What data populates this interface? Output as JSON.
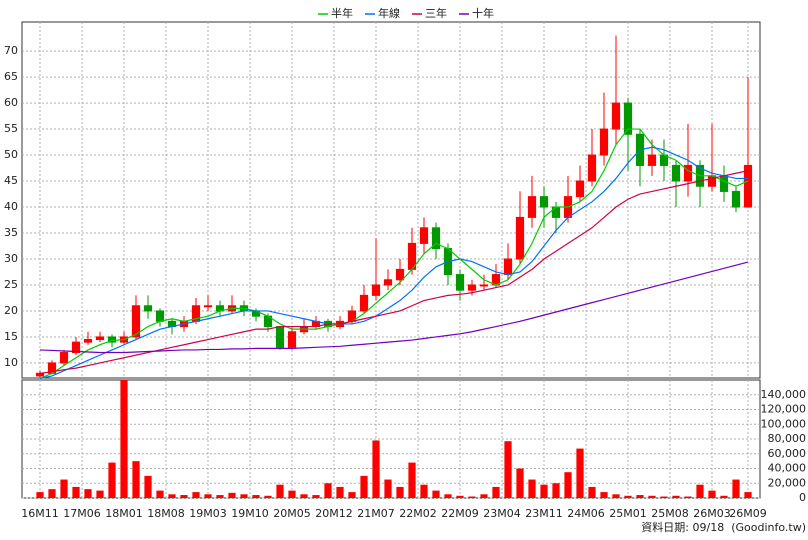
{
  "chart_data": [
    {
      "type": "candlestick",
      "x": [
        0,
        2,
        4,
        6,
        8,
        10,
        12,
        14,
        16,
        18,
        20,
        22,
        24,
        26,
        28,
        30,
        32,
        34,
        36,
        38,
        40,
        42,
        44,
        46,
        48,
        50,
        52,
        54,
        56,
        58,
        60,
        62,
        64,
        66,
        68,
        70,
        72,
        74,
        76,
        78,
        80,
        82,
        84,
        86,
        88,
        90,
        92,
        94,
        96,
        98,
        100,
        102,
        104,
        106,
        108,
        110,
        112,
        114,
        116,
        118
      ],
      "open": [
        7.5,
        8,
        10,
        12,
        14,
        14.5,
        15,
        14,
        15,
        21,
        20,
        18,
        17,
        18,
        21,
        21,
        20,
        21,
        20,
        19,
        17,
        13,
        16,
        17,
        18,
        17,
        18,
        20,
        23,
        25,
        26,
        28,
        33,
        36,
        32,
        27,
        24,
        25,
        25,
        27,
        30,
        38,
        42,
        40,
        38,
        42,
        45,
        50,
        55,
        60,
        54,
        48,
        50,
        48,
        45,
        48,
        44,
        46,
        43,
        40
      ],
      "high": [
        8.5,
        10.5,
        12.5,
        15,
        16,
        16,
        15.5,
        16,
        23,
        23,
        20.5,
        18.5,
        19,
        22.5,
        23,
        22,
        23,
        22,
        20.5,
        19.5,
        17,
        17,
        18.5,
        19,
        18.5,
        19,
        21,
        25,
        34,
        28,
        30,
        36,
        38,
        37,
        33,
        28,
        26,
        27,
        29,
        33,
        43,
        46,
        44,
        41,
        46,
        48,
        55,
        62,
        73,
        61,
        55,
        53,
        53,
        49,
        56,
        49,
        56,
        48,
        44,
        65
      ],
      "low": [
        7,
        7.8,
        9.5,
        11.5,
        13.5,
        14,
        13,
        13.5,
        14.5,
        18.5,
        17,
        15.5,
        16,
        17.5,
        20,
        19,
        19.5,
        19,
        18,
        16,
        12.5,
        12.5,
        15.5,
        16.5,
        16,
        16.5,
        17.5,
        19.5,
        22,
        24,
        25,
        27,
        31,
        30,
        25,
        22,
        23,
        24,
        24.5,
        26,
        29,
        36,
        36,
        35,
        37,
        41,
        44,
        48,
        52,
        47,
        44,
        46,
        45,
        40,
        42,
        40,
        43,
        41,
        39,
        40
      ],
      "close": [
        8,
        10,
        12,
        14,
        14.5,
        15,
        14,
        15,
        21,
        20,
        18,
        17,
        18,
        21,
        21,
        20,
        21,
        20,
        19,
        17,
        13,
        16,
        17,
        18,
        17,
        18,
        20,
        23,
        25,
        26,
        28,
        33,
        36,
        32,
        27,
        24,
        25,
        25,
        27,
        30,
        38,
        42,
        40,
        38,
        42,
        45,
        50,
        55,
        60,
        54,
        48,
        50,
        48,
        45,
        48,
        44,
        46,
        43,
        40,
        48
      ],
      "up_color": "#ff0000",
      "down_color": "#009900",
      "series": [
        {
          "name": "半年",
          "color": "#00cc00",
          "values": [
            7,
            8,
            9.5,
            11,
            12.5,
            13.5,
            14.3,
            14.5,
            15.5,
            17,
            18,
            18.5,
            18,
            18.5,
            19,
            20,
            20.5,
            20.5,
            20,
            19,
            17.5,
            16.5,
            16.5,
            16.5,
            17,
            17.5,
            18,
            19.5,
            21.5,
            23.5,
            25.5,
            28,
            31,
            33,
            32,
            30,
            28,
            26,
            25,
            26,
            29,
            33,
            38,
            40,
            40,
            41,
            43,
            47,
            52,
            55,
            55,
            52,
            50,
            49,
            47,
            46,
            46,
            45,
            44,
            45
          ]
        },
        {
          "name": "年線",
          "color": "#0070ff",
          "values": [
            7,
            7.5,
            8.5,
            9.5,
            10.5,
            11.5,
            12.5,
            13.5,
            14.5,
            15.5,
            16.5,
            17,
            17.5,
            18,
            18.5,
            19,
            19.5,
            20,
            20,
            20,
            19.5,
            19,
            18.5,
            18,
            17.5,
            17.5,
            17.5,
            18,
            19,
            20.5,
            22,
            24,
            26.5,
            28.5,
            29.5,
            30,
            29.5,
            28.5,
            27.5,
            27,
            27.5,
            29.5,
            32.5,
            35.5,
            38,
            39.5,
            41,
            43,
            45.5,
            48.5,
            51,
            51.5,
            51,
            50,
            49,
            47.5,
            46.5,
            46,
            45.5,
            45.5
          ]
        },
        {
          "name": "三年",
          "color": "#d0004a",
          "values": [
            8,
            8.3,
            8.7,
            9,
            9.5,
            10,
            10.5,
            11,
            11.5,
            12,
            12.5,
            13,
            13.5,
            14,
            14.5,
            15,
            15.5,
            16,
            16.5,
            16.5,
            17,
            17,
            17,
            17,
            17.5,
            17.5,
            18,
            18.5,
            19,
            19.5,
            20,
            21,
            22,
            22.5,
            23,
            23.2,
            23.5,
            24,
            24.5,
            25,
            26.5,
            28,
            30,
            31.5,
            33,
            34.5,
            36,
            38,
            40,
            41.5,
            42.5,
            43,
            43.5,
            44,
            44.5,
            45,
            45.5,
            46,
            46.5,
            47
          ]
        },
        {
          "name": "十年",
          "color": "#7000c0",
          "values": [
            12.5,
            12.4,
            12.3,
            12.2,
            12.1,
            12,
            12,
            12,
            12.1,
            12.2,
            12.3,
            12.4,
            12.5,
            12.5,
            12.6,
            12.6,
            12.7,
            12.7,
            12.8,
            12.8,
            12.8,
            12.8,
            12.9,
            13,
            13.1,
            13.2,
            13.4,
            13.6,
            13.8,
            14,
            14.2,
            14.4,
            14.7,
            15,
            15.3,
            15.6,
            16,
            16.5,
            17,
            17.5,
            18,
            18.6,
            19.2,
            19.8,
            20.4,
            21,
            21.6,
            22.2,
            22.8,
            23.4,
            24,
            24.6,
            25.2,
            25.8,
            26.4,
            27,
            27.6,
            28.2,
            28.8,
            29.4
          ]
        }
      ],
      "xlim": [
        -3,
        120
      ],
      "xticks": [
        {
          "value": 0,
          "label": "16M11"
        },
        {
          "value": 7,
          "label": "17M06"
        },
        {
          "value": 14,
          "label": "18M01"
        },
        {
          "value": 21,
          "label": "18M08"
        },
        {
          "value": 28,
          "label": "19M03"
        },
        {
          "value": 35,
          "label": "19M10"
        },
        {
          "value": 42,
          "label": "20M05"
        },
        {
          "value": 49,
          "label": "20M12"
        },
        {
          "value": 56,
          "label": "21M07"
        },
        {
          "value": 63,
          "label": "22M02"
        },
        {
          "value": 70,
          "label": "22M09"
        },
        {
          "value": 77,
          "label": "23M04"
        },
        {
          "value": 84,
          "label": "23M11"
        },
        {
          "value": 91,
          "label": "24M06"
        },
        {
          "value": 98,
          "label": "25M01"
        },
        {
          "value": 105,
          "label": "25M08"
        },
        {
          "value": 112,
          "label": "26M03"
        },
        {
          "value": 118,
          "label": "26M09"
        }
      ],
      "ylim": [
        7.1,
        75.6
      ],
      "yticks": [
        10,
        15,
        20,
        25,
        30,
        35,
        40,
        45,
        50,
        55,
        60,
        65,
        70
      ],
      "grid": true,
      "source": "資料日期: 09/18  (Goodinfo.tw)"
    },
    {
      "type": "bar",
      "color": "#ff0000",
      "values": [
        8000,
        12000,
        25000,
        15000,
        12000,
        10000,
        48000,
        160000,
        50000,
        30000,
        10000,
        5000,
        4000,
        8000,
        5000,
        4000,
        7000,
        5000,
        4000,
        3000,
        18000,
        10000,
        5000,
        4000,
        20000,
        15000,
        8000,
        30000,
        78000,
        25000,
        15000,
        48000,
        18000,
        10000,
        5000,
        3000,
        2000,
        5000,
        15000,
        77000,
        40000,
        25000,
        18000,
        20000,
        35000,
        67000,
        15000,
        8000,
        5000,
        3000,
        4000,
        3000,
        2000,
        3000,
        2000,
        18000,
        10000,
        3000,
        25000,
        8000
      ],
      "ylim": [
        0,
        160000
      ],
      "yticks": [
        0,
        {
          "value": 20000,
          "label": "20,000"
        },
        {
          "value": 40000,
          "label": "40,000"
        },
        {
          "value": 60000,
          "label": "60,000"
        },
        {
          "value": 80000,
          "label": "80,000"
        },
        {
          "value": 100000,
          "label": "100,000"
        },
        {
          "value": 120000,
          "label": "120,000"
        },
        {
          "value": 140000,
          "label": "140,000"
        }
      ],
      "grid": true
    }
  ]
}
